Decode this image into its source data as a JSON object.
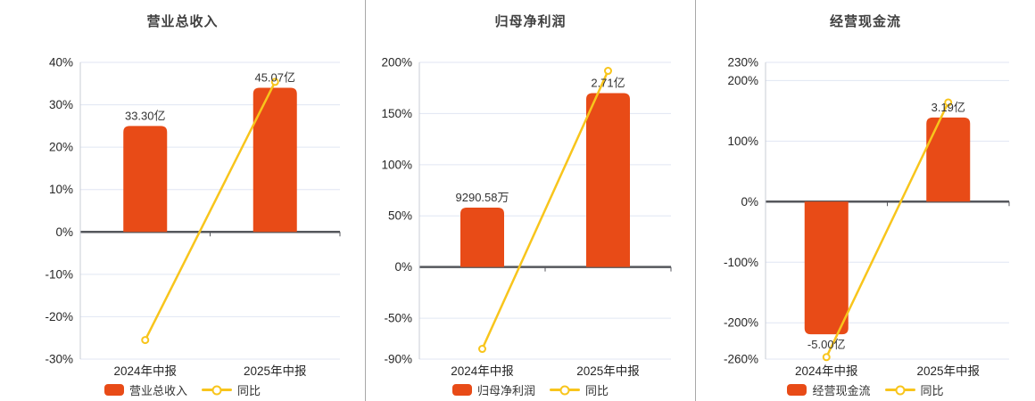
{
  "page": {
    "background": "#ffffff"
  },
  "colors": {
    "bar": "#e84b17",
    "line": "#f8c51c",
    "grid": "#e0e6f3",
    "zero_axis": "#55575c",
    "y_axis": "#c9ccd4",
    "divider": "#a8a8a8",
    "tick_text": "#262626",
    "value_text": "#333333",
    "title_text": "#404040"
  },
  "chart_data": [
    {
      "type": "bar",
      "title": "营业总收入",
      "categories": [
        "2024年中报",
        "2025年中报"
      ],
      "bar_series": {
        "name": "营业总收入",
        "value_labels": [
          "33.30亿",
          "45.07亿"
        ],
        "bar_tops_axis_pct": [
          25,
          34
        ]
      },
      "line_series": {
        "name": "同比",
        "values_pct": [
          -25.5,
          35.4
        ]
      },
      "yticks_pct": [
        40,
        30,
        20,
        10,
        0,
        -10,
        -20,
        -30
      ],
      "ylim": [
        -30,
        40
      ],
      "grid": true,
      "legend_position": "bottom"
    },
    {
      "type": "bar",
      "title": "归母净利润",
      "categories": [
        "2024年中报",
        "2025年中报"
      ],
      "bar_series": {
        "name": "归母净利润",
        "value_labels": [
          "9290.58万",
          "2.71亿"
        ],
        "bar_tops_axis_pct": [
          58,
          170
        ]
      },
      "line_series": {
        "name": "同比",
        "values_pct": [
          -80,
          191.7
        ]
      },
      "yticks_pct": [
        200,
        150,
        100,
        50,
        0,
        -50,
        -90
      ],
      "ylim": [
        -90,
        200
      ],
      "grid": true,
      "legend_position": "bottom"
    },
    {
      "type": "bar",
      "title": "经营现金流",
      "categories": [
        "2024年中报",
        "2025年中报"
      ],
      "bar_series": {
        "name": "经营现金流",
        "value_labels": [
          "-5.00亿",
          "3.19亿"
        ],
        "bar_tops_axis_pct": [
          -219,
          139
        ]
      },
      "line_series": {
        "name": "同比",
        "values_pct": [
          -256.7,
          163.8
        ]
      },
      "yticks_pct": [
        230,
        200,
        100,
        0,
        -100,
        -200,
        -260
      ],
      "ylim": [
        -260,
        230
      ],
      "grid": true,
      "legend_position": "bottom"
    }
  ]
}
